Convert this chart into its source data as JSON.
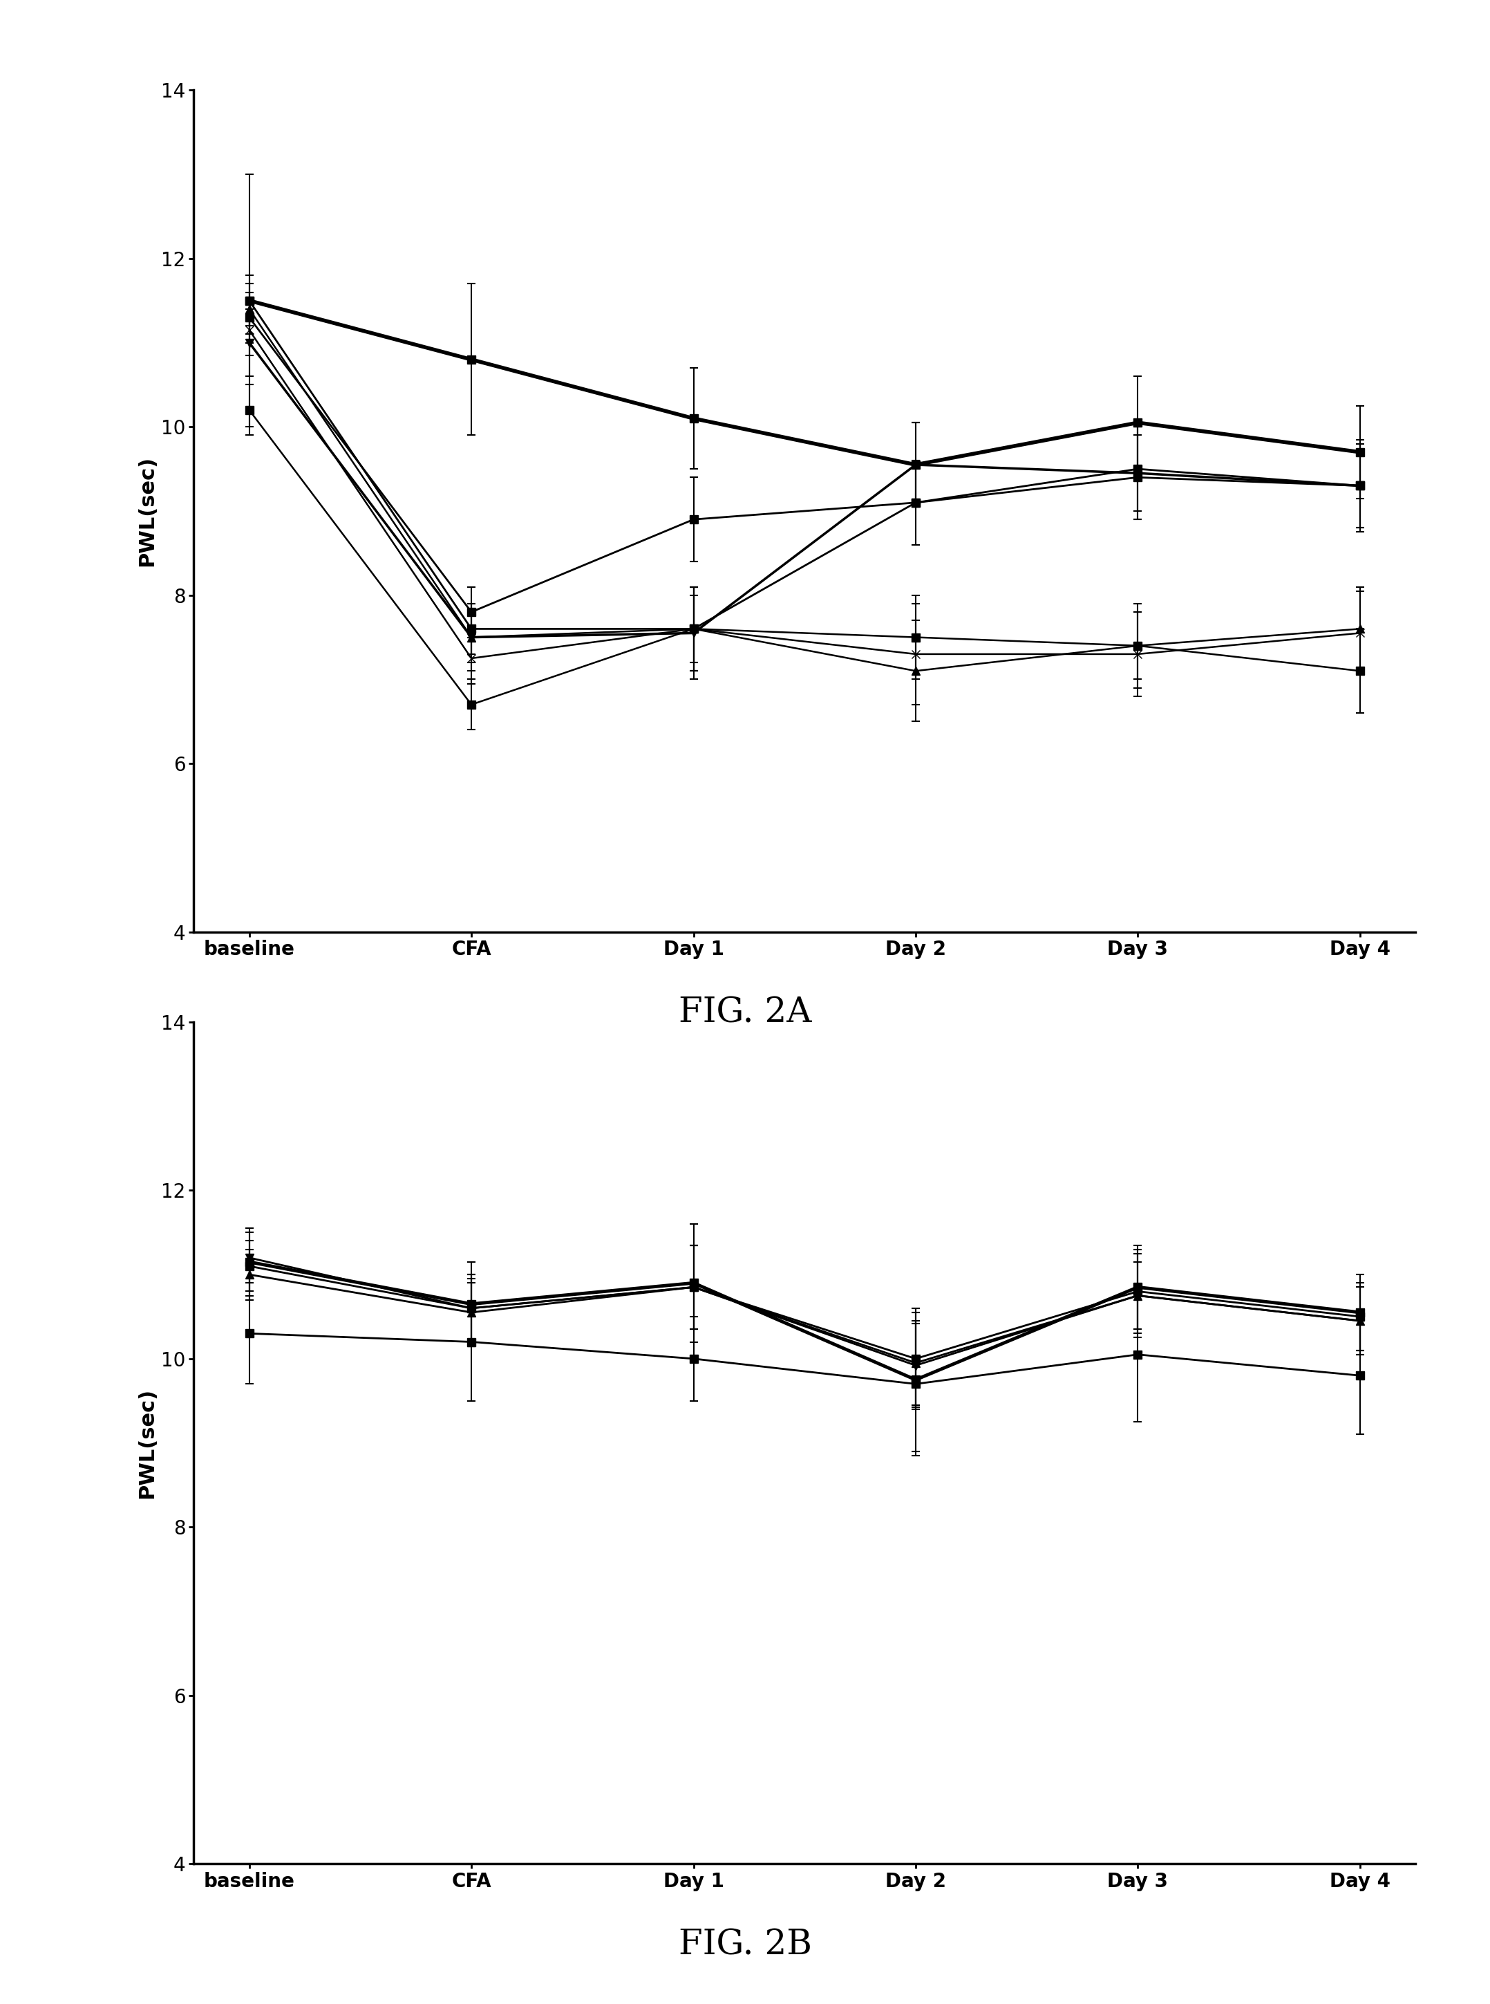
{
  "x_labels": [
    "baseline",
    "CFA",
    "Day 1",
    "Day 2",
    "Day 3",
    "Day 4"
  ],
  "fig2a": {
    "series": [
      {
        "y": [
          11.5,
          10.8,
          10.1,
          9.55,
          10.05,
          9.7
        ],
        "yerr": [
          1.5,
          0.9,
          0.6,
          0.5,
          0.55,
          0.55
        ],
        "marker": "s",
        "linewidth": 4.0,
        "markersize": 9
      },
      {
        "y": [
          11.0,
          7.5,
          7.55,
          9.55,
          9.45,
          9.3
        ],
        "yerr": [
          0.4,
          0.4,
          0.55,
          0.5,
          0.55,
          0.55
        ],
        "marker": "v",
        "linewidth": 2.5,
        "markersize": 9
      },
      {
        "y": [
          11.3,
          7.8,
          8.9,
          9.1,
          9.5,
          9.3
        ],
        "yerr": [
          0.3,
          0.3,
          0.5,
          0.5,
          0.5,
          0.5
        ],
        "marker": "s",
        "linewidth": 2.0,
        "markersize": 8
      },
      {
        "y": [
          11.5,
          7.6,
          7.6,
          9.1,
          9.4,
          9.3
        ],
        "yerr": [
          0.3,
          0.3,
          0.5,
          0.5,
          0.5,
          0.5
        ],
        "marker": "s",
        "linewidth": 2.0,
        "markersize": 8
      },
      {
        "y": [
          11.15,
          7.25,
          7.6,
          7.3,
          7.3,
          7.55
        ],
        "yerr": [
          0.3,
          0.3,
          0.5,
          0.6,
          0.5,
          0.5
        ],
        "marker": "x",
        "linewidth": 1.8,
        "markersize": 9
      },
      {
        "y": [
          11.4,
          7.5,
          7.6,
          7.1,
          7.4,
          7.6
        ],
        "yerr": [
          0.3,
          0.3,
          0.5,
          0.6,
          0.5,
          0.5
        ],
        "marker": "^",
        "linewidth": 1.8,
        "markersize": 8
      },
      {
        "y": [
          10.2,
          6.7,
          7.6,
          7.5,
          7.4,
          7.1
        ],
        "yerr": [
          0.3,
          0.3,
          0.4,
          0.5,
          0.4,
          0.5
        ],
        "marker": "s",
        "linewidth": 1.8,
        "markersize": 8
      }
    ],
    "ylabel": "PWL(sec)",
    "ylim": [
      4,
      14
    ],
    "yticks": [
      4,
      6,
      8,
      10,
      12,
      14
    ],
    "title": "FIG. 2A"
  },
  "fig2b": {
    "series": [
      {
        "y": [
          11.15,
          10.65,
          10.9,
          9.75,
          10.85,
          10.55
        ],
        "yerr": [
          0.4,
          0.5,
          0.7,
          0.85,
          0.5,
          0.45
        ],
        "marker": "s",
        "linewidth": 3.5,
        "markersize": 9
      },
      {
        "y": [
          11.1,
          10.6,
          10.85,
          10.0,
          10.8,
          10.5
        ],
        "yerr": [
          0.3,
          0.4,
          0.5,
          0.6,
          0.5,
          0.4
        ],
        "marker": "s",
        "linewidth": 2.0,
        "markersize": 8
      },
      {
        "y": [
          11.0,
          10.55,
          10.85,
          9.95,
          10.75,
          10.45
        ],
        "yerr": [
          0.3,
          0.4,
          0.5,
          0.5,
          0.5,
          0.4
        ],
        "marker": "^",
        "linewidth": 2.0,
        "markersize": 8
      },
      {
        "y": [
          11.2,
          10.6,
          10.85,
          9.92,
          10.75,
          10.45
        ],
        "yerr": [
          0.3,
          0.4,
          0.5,
          0.5,
          0.4,
          0.4
        ],
        "marker": "v",
        "linewidth": 2.0,
        "markersize": 8
      },
      {
        "y": [
          10.3,
          10.2,
          10.0,
          9.7,
          10.05,
          9.8
        ],
        "yerr": [
          0.6,
          0.7,
          0.5,
          0.85,
          0.8,
          0.7
        ],
        "marker": "s",
        "linewidth": 2.0,
        "markersize": 8
      }
    ],
    "ylabel": "PWL(sec)",
    "ylim": [
      4,
      14
    ],
    "yticks": [
      4,
      6,
      8,
      10,
      12,
      14
    ],
    "title": "FIG. 2B"
  },
  "background_color": "#ffffff",
  "line_color": "#000000",
  "font_size_label": 22,
  "font_size_tick": 20,
  "font_size_title": 36,
  "capsize": 4
}
